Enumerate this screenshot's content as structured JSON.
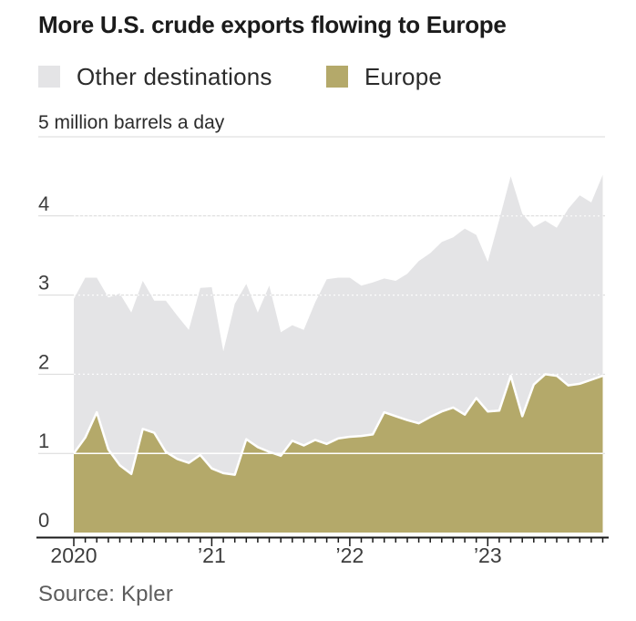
{
  "header": {
    "title": "More U.S. crude exports flowing to Europe"
  },
  "legend": [
    {
      "label": "Other destinations",
      "color": "#e4e4e6"
    },
    {
      "label": "Europe",
      "color": "#b4a96a"
    }
  ],
  "unit_label": "5 million barrels a day",
  "source": "Source: Kpler",
  "colors": {
    "europe_area": "#b4a96a",
    "other_area": "#e4e4e6",
    "gridline": "#d9d9d9",
    "axis": "#1a1a1a",
    "tick_label": "#3d3d3d",
    "series_divider": "#ffffff"
  },
  "chart_data": {
    "type": "area",
    "stacked": true,
    "title": "More U.S. crude exports flowing to Europe",
    "unit": "million barrels a day",
    "frequency": "monthly",
    "x_start": "2020-01",
    "x_end": "2023-11",
    "x_tick_labels": [
      "2020",
      "’21",
      "’22",
      "’23"
    ],
    "x_tick_month_index": [
      0,
      12,
      24,
      36
    ],
    "y_ticks": [
      0,
      1,
      2,
      3,
      4
    ],
    "y_top_tick": 5,
    "ylim": [
      0,
      5
    ],
    "legend_position": "top",
    "grid": true,
    "series": [
      {
        "name": "Europe",
        "values": [
          1.0,
          1.2,
          1.52,
          1.05,
          0.85,
          0.74,
          1.31,
          1.26,
          1.02,
          0.93,
          0.88,
          0.98,
          0.81,
          0.75,
          0.73,
          1.18,
          1.08,
          1.02,
          0.97,
          1.16,
          1.1,
          1.17,
          1.12,
          1.19,
          1.21,
          1.22,
          1.24,
          1.52,
          1.47,
          1.42,
          1.38,
          1.46,
          1.53,
          1.58,
          1.49,
          1.7,
          1.53,
          1.54,
          1.98,
          1.47,
          1.87,
          2.0,
          1.98,
          1.86,
          1.88,
          1.93,
          1.98
        ]
      },
      {
        "name": "Other destinations",
        "values": [
          1.95,
          2.02,
          1.7,
          1.92,
          2.17,
          2.04,
          1.87,
          1.67,
          1.91,
          1.81,
          1.68,
          2.11,
          2.29,
          1.54,
          2.16,
          1.96,
          1.7,
          2.1,
          1.56,
          1.46,
          1.46,
          1.74,
          2.08,
          2.03,
          2.01,
          1.9,
          1.92,
          1.69,
          1.71,
          1.85,
          2.05,
          2.07,
          2.14,
          2.15,
          2.35,
          2.06,
          1.89,
          2.41,
          2.52,
          2.56,
          1.99,
          1.94,
          1.87,
          2.23,
          2.38,
          2.24,
          2.54
        ]
      }
    ]
  }
}
